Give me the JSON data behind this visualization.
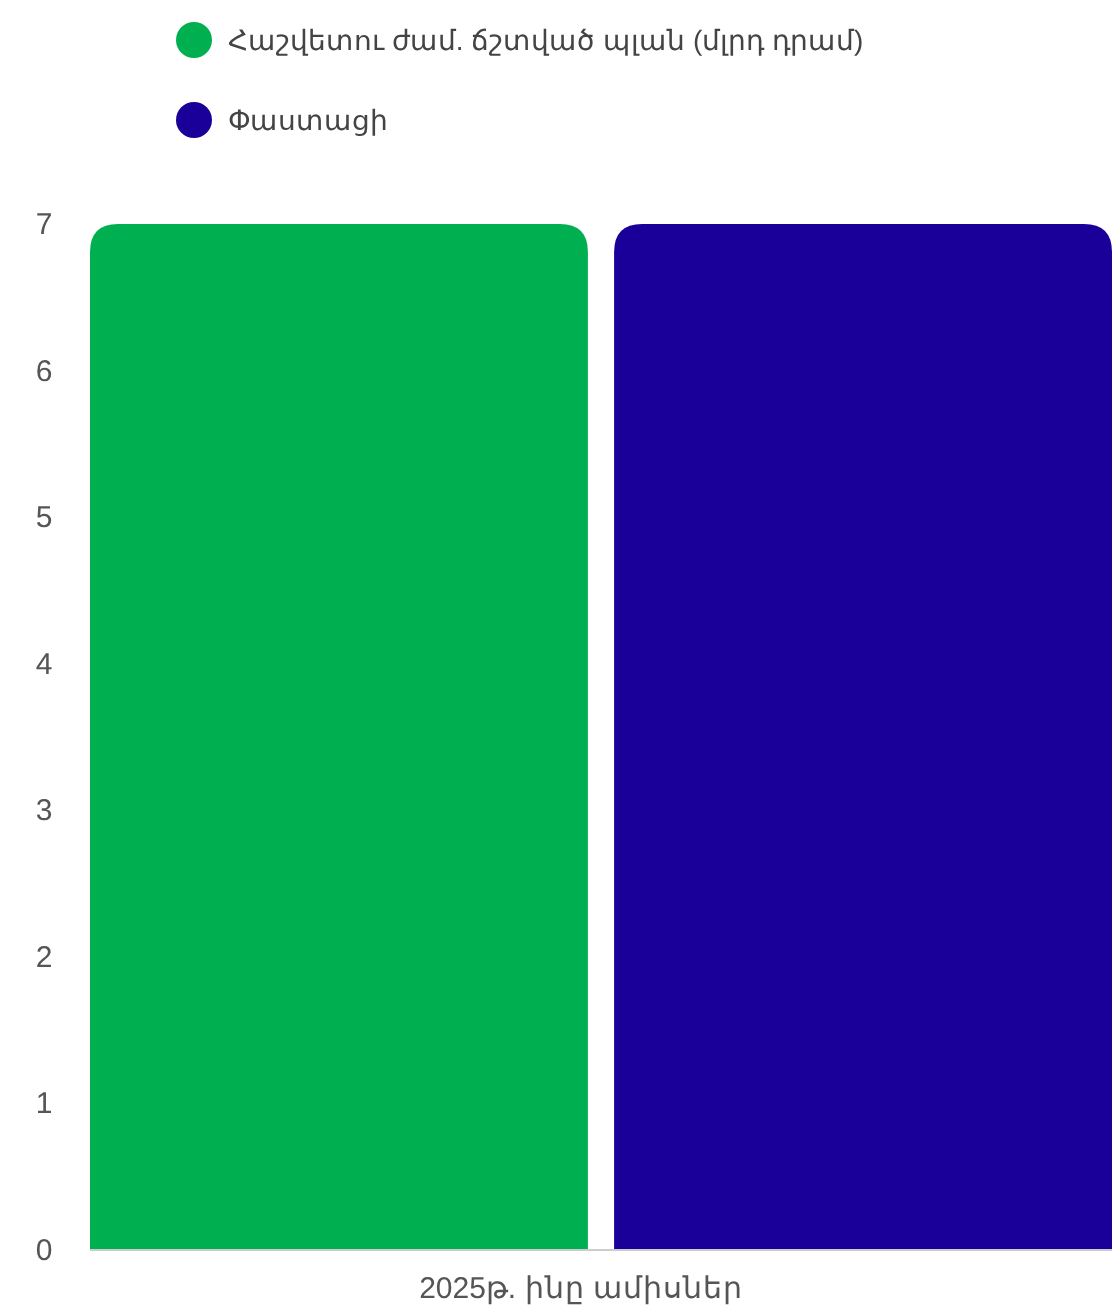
{
  "chart_data": {
    "type": "bar",
    "categories": [
      "2025թ. ինը ամիսներ"
    ],
    "series": [
      {
        "name": "Հաշվետու ժամ. ճշտված պլան (մլրդ դրամ)",
        "color": "#00b050",
        "values": [
          7
        ]
      },
      {
        "name": "Փաստացի",
        "color": "#1a0099",
        "values": [
          7
        ]
      }
    ],
    "ylim": [
      0,
      7
    ],
    "yticks": [
      0,
      1,
      2,
      3,
      4,
      5,
      6,
      7
    ],
    "grid": false,
    "legend": "top left"
  }
}
